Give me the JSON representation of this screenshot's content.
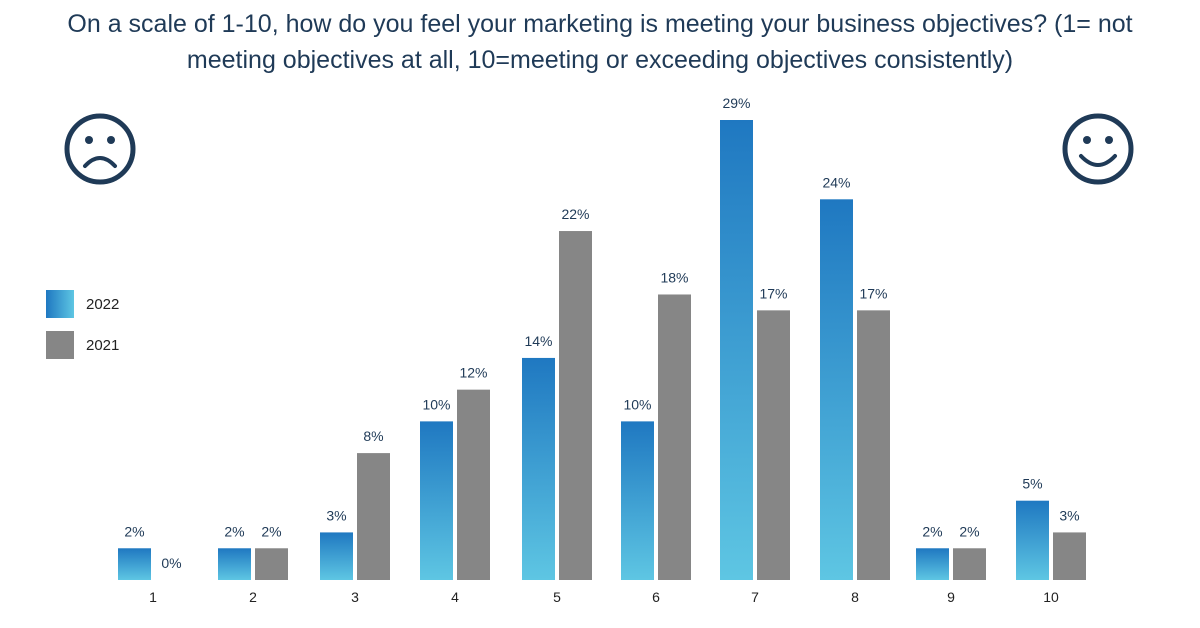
{
  "title": "On a scale of 1-10, how do you feel your marketing is meeting your business objectives? (1= not meeting objectives at all, 10=meeting or exceeding objectives consistently)",
  "icons": {
    "left": "sad-face-icon",
    "right": "happy-face-icon"
  },
  "colors": {
    "series_2022_top": "#1f78c1",
    "series_2022_bottom": "#5ec6e3",
    "series_2021": "#868686",
    "label": "#1f3a57",
    "face": "#1f3a57"
  },
  "chart_data": {
    "type": "bar",
    "categories": [
      "1",
      "2",
      "3",
      "4",
      "5",
      "6",
      "7",
      "8",
      "9",
      "10"
    ],
    "series": [
      {
        "name": "2022",
        "values": [
          2,
          2,
          3,
          10,
          14,
          10,
          29,
          24,
          2,
          5
        ],
        "labels": [
          "2%",
          "2%",
          "3%",
          "10%",
          "14%",
          "10%",
          "29%",
          "24%",
          "2%",
          "5%"
        ]
      },
      {
        "name": "2021",
        "values": [
          0,
          2,
          8,
          12,
          22,
          18,
          17,
          17,
          2,
          3
        ],
        "labels": [
          "0%",
          "2%",
          "8%",
          "12%",
          "22%",
          "18%",
          "17%",
          "17%",
          "2%",
          "3%"
        ]
      }
    ],
    "ylim": [
      0,
      29
    ],
    "grid": false,
    "legend_position": "left"
  }
}
